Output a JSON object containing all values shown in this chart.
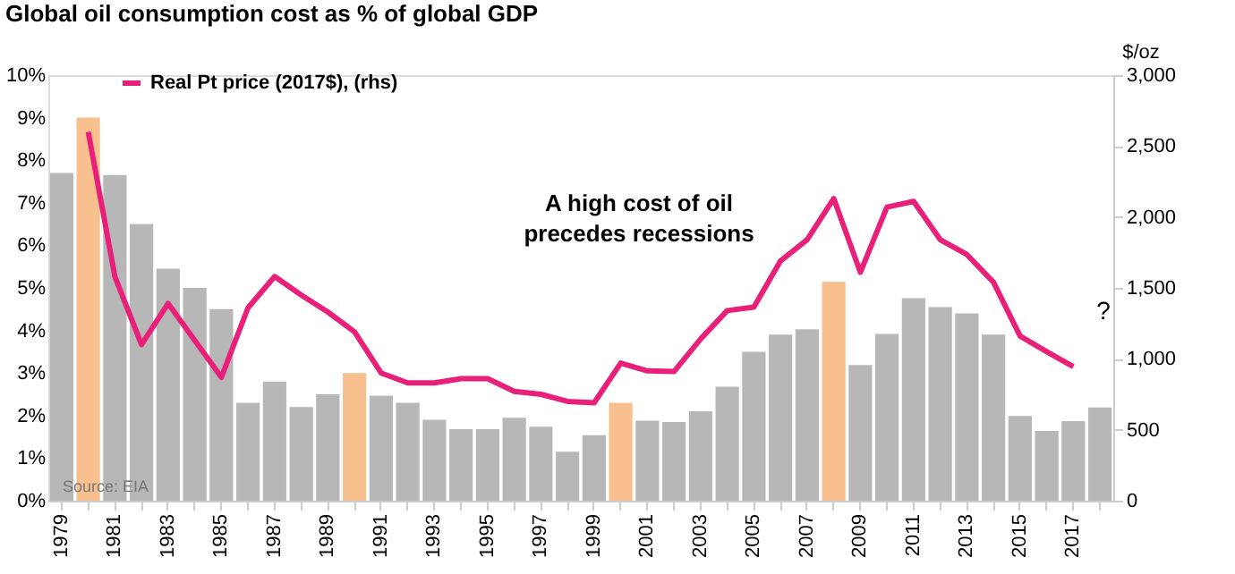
{
  "chart_data": {
    "type": "bar",
    "title": "Global oil consumption cost as % of global GDP",
    "y2label": "$/oz",
    "categories": [
      "1979",
      null,
      "1981",
      null,
      "1983",
      null,
      "1985",
      null,
      "1987",
      null,
      "1989",
      null,
      "1991",
      null,
      "1993",
      null,
      "1995",
      null,
      "1997",
      null,
      "1999",
      null,
      "2001",
      null,
      "2003",
      null,
      "2005",
      null,
      "2007",
      null,
      "2009",
      null,
      "2011",
      null,
      "2013",
      null,
      "2015",
      null,
      "2017",
      null
    ],
    "series": [
      {
        "values": [
          7.7,
          9.0,
          7.65,
          6.5,
          5.45,
          5.0,
          4.5,
          2.3,
          2.8,
          2.2,
          2.5,
          3.0,
          2.47,
          2.3,
          1.9,
          1.68,
          1.68,
          1.95,
          1.74,
          1.15,
          1.54,
          2.3,
          1.88,
          1.85,
          2.1,
          2.68,
          3.5,
          3.9,
          4.03,
          5.14,
          3.19,
          3.92,
          4.76,
          4.55,
          4.4,
          3.9,
          1.99,
          1.64,
          1.87,
          2.19
        ],
        "colors": [
          "#b7b7b7",
          "#f9c08f",
          "#b7b7b7",
          "#b7b7b7",
          "#b7b7b7",
          "#b7b7b7",
          "#b7b7b7",
          "#b7b7b7",
          "#b7b7b7",
          "#b7b7b7",
          "#b7b7b7",
          "#f9c08f",
          "#b7b7b7",
          "#b7b7b7",
          "#b7b7b7",
          "#b7b7b7",
          "#b7b7b7",
          "#b7b7b7",
          "#b7b7b7",
          "#b7b7b7",
          "#b7b7b7",
          "#f9c08f",
          "#b7b7b7",
          "#b7b7b7",
          "#b7b7b7",
          "#b7b7b7",
          "#b7b7b7",
          "#b7b7b7",
          "#b7b7b7",
          "#f9c08f",
          "#b7b7b7",
          "#b7b7b7",
          "#b7b7b7",
          "#b7b7b7",
          "#b7b7b7",
          "#b7b7b7",
          "#b7b7b7",
          "#b7b7b7",
          "#b7b7b7",
          "#b7b7b7"
        ]
      },
      {
        "type": "line",
        "name": "Real Pt price (2017$), (rhs)",
        "color": "#e8207a",
        "axis": "y2",
        "values": [
          null,
          2600,
          1580,
          1100,
          1390,
          1130,
          870,
          1360,
          1580,
          1450,
          1330,
          1190,
          900,
          830,
          830,
          860,
          860,
          770,
          750,
          700,
          690,
          970,
          915,
          910,
          1140,
          1340,
          1365,
          1690,
          1840,
          2130,
          1610,
          2070,
          2110,
          1840,
          1735,
          1540,
          1160,
          1050,
          945,
          null
        ]
      }
    ],
    "ylim": [
      0,
      10
    ],
    "yticks": [
      {
        "value": 0,
        "label": "0%"
      },
      {
        "value": 1,
        "label": "1%"
      },
      {
        "value": 2,
        "label": "2%"
      },
      {
        "value": 3,
        "label": "3%"
      },
      {
        "value": 4,
        "label": "4%"
      },
      {
        "value": 5,
        "label": "5%"
      },
      {
        "value": 6,
        "label": "6%"
      },
      {
        "value": 7,
        "label": "7%"
      },
      {
        "value": 8,
        "label": "8%"
      },
      {
        "value": 9,
        "label": "9%"
      },
      {
        "value": 10,
        "label": "10%"
      }
    ],
    "y2lim": [
      0,
      3000
    ],
    "y2ticks": [
      0,
      500,
      {
        "value": 1000,
        "label": "1,000"
      },
      {
        "value": 1500,
        "label": "1,500"
      },
      {
        "value": 2000,
        "label": "2,000"
      },
      {
        "value": 2500,
        "label": "2,500"
      },
      {
        "value": 3000,
        "label": "3,000"
      }
    ],
    "annotations": [
      "A high cost of oil precedes recessions",
      "?",
      "Source: EIA"
    ],
    "legend": "top",
    "grid": false
  }
}
